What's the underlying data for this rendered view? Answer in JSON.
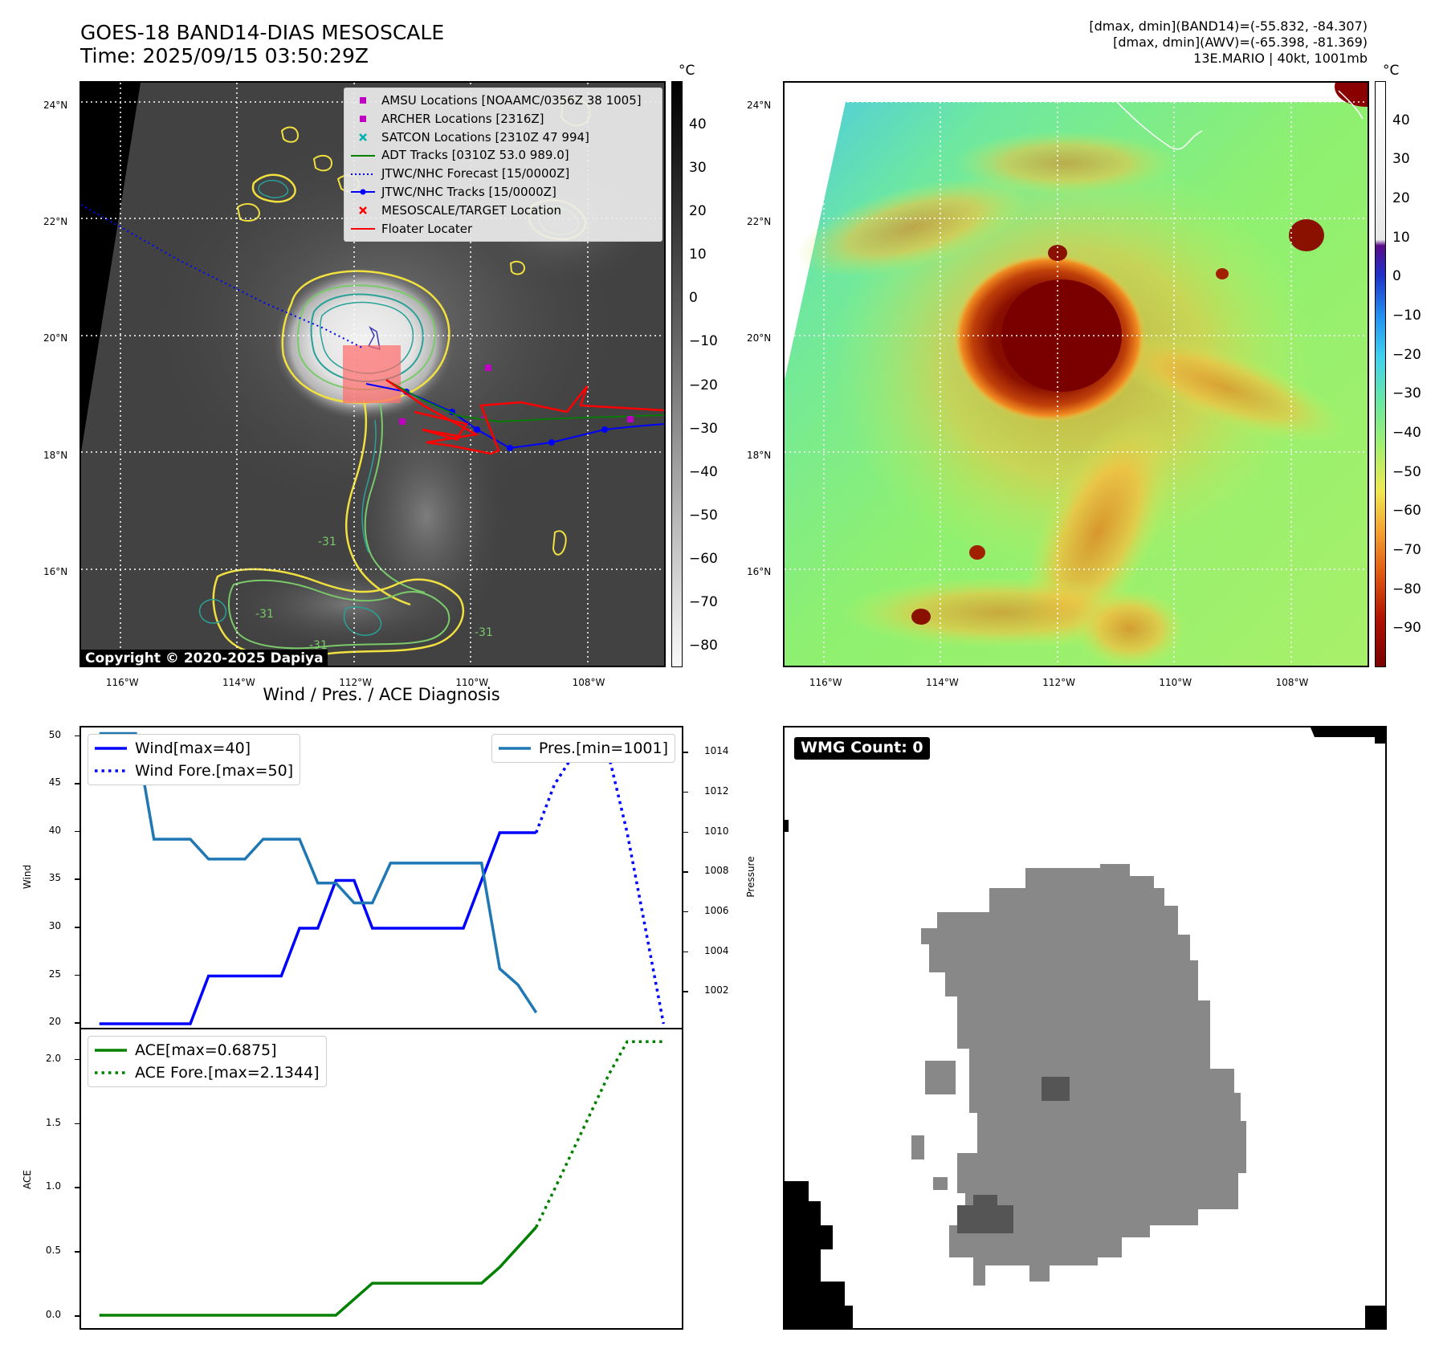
{
  "header": {
    "title_line1": "GOES-18 BAND14-DIAS MESOSCALE",
    "title_line2": "Time: 2025/09/15 03:50:29Z",
    "info_line1": "[dmax, dmin](BAND14)=(-55.832, -84.307)",
    "info_line2": "[dmax, dmin](AWV)=(-65.398, -81.369)",
    "info_line3": "13E.MARIO | 40kt, 1001mb"
  },
  "map_axes": {
    "lat_labels": [
      "24°N",
      "22°N",
      "20°N",
      "18°N",
      "16°N"
    ],
    "lat_values": [
      24,
      22,
      20,
      18,
      16
    ],
    "lon_labels": [
      "116°W",
      "114°W",
      "112°W",
      "110°W",
      "108°W"
    ],
    "lon_values": [
      -116,
      -114,
      -112,
      -110,
      -108
    ],
    "lon_range": [
      -116.7,
      -106.7
    ],
    "lat_range": [
      14.4,
      24.4
    ]
  },
  "ir_panel": {
    "colorbar_unit": "°C",
    "colorbar_ticks": [
      "40",
      "30",
      "20",
      "10",
      "0",
      "−10",
      "−20",
      "−30",
      "−40",
      "−50",
      "−60",
      "−70",
      "−80"
    ],
    "colorbar_values": [
      40,
      30,
      20,
      10,
      0,
      -10,
      -20,
      -30,
      -40,
      -50,
      -60,
      -70,
      -80
    ],
    "colorbar_range": [
      -85,
      50
    ],
    "copyright": "Copyright © 2020-2025 Dapiya",
    "legend": [
      {
        "label": "AMSU Locations [NOAAMC/0356Z 38 1005]",
        "symbol": "square",
        "color": "#c000c0"
      },
      {
        "label": "ARCHER Locations [2316Z]",
        "symbol": "square",
        "color": "#c000c0"
      },
      {
        "label": "SATCON Locations [2310Z 47 994]",
        "symbol": "x",
        "color": "#00b0b0"
      },
      {
        "label": "ADT Tracks [0310Z 53.0 989.0]",
        "symbol": "line",
        "color": "#008000"
      },
      {
        "label": "JTWC/NHC Forecast [15/0000Z]",
        "symbol": "dotted",
        "color": "#0000ff"
      },
      {
        "label": "JTWC/NHC Tracks [15/0000Z]",
        "symbol": "line-dot",
        "color": "#0000ff"
      },
      {
        "label": "MESOSCALE/TARGET Location",
        "symbol": "x",
        "color": "#ff0000"
      },
      {
        "label": "Floater Locater",
        "symbol": "line",
        "color": "#ff0000"
      }
    ],
    "contour_labels": [
      "-31",
      "-31",
      "-31",
      "-31"
    ]
  },
  "awv_panel": {
    "colorbar_unit": "°C",
    "colorbar_ticks": [
      "40",
      "30",
      "20",
      "10",
      "0",
      "−10",
      "−20",
      "−30",
      "−40",
      "−50",
      "−60",
      "−70",
      "−80",
      "−90"
    ],
    "colorbar_values": [
      40,
      30,
      20,
      10,
      0,
      -10,
      -20,
      -30,
      -40,
      -50,
      -60,
      -70,
      -80,
      -90
    ],
    "colorbar_range": [
      -100,
      50
    ]
  },
  "diagnosis_title": "Wind / Pres. / ACE Diagnosis",
  "chart_data": [
    {
      "type": "line",
      "title": "Wind / Pres. / ACE Diagnosis",
      "ylabel": "Wind",
      "ylabel_right": "Pressure",
      "ylim": [
        19.5,
        51
      ],
      "ylim_right": [
        1000.2,
        1015.3
      ],
      "yticks": [
        20,
        25,
        30,
        35,
        40,
        45,
        50
      ],
      "yticks_right": [
        1002,
        1004,
        1006,
        1008,
        1010,
        1012,
        1014
      ],
      "xlim": [
        -1,
        32
      ],
      "series": [
        {
          "name": "Wind[max=40]",
          "axis": "left",
          "style": "solid",
          "color": "#0000ff",
          "x": [
            0,
            5,
            6,
            10,
            11,
            12,
            13,
            14,
            15,
            16,
            17,
            18,
            19,
            20,
            21,
            22,
            23,
            24
          ],
          "values": [
            20,
            20,
            25,
            25,
            30,
            30,
            35,
            35,
            30,
            30,
            30,
            30,
            30,
            30,
            35,
            40,
            40,
            40
          ]
        },
        {
          "name": "Wind Fore.[max=50]",
          "axis": "left",
          "style": "dotted",
          "color": "#0000ff",
          "x": [
            24,
            25,
            26,
            27,
            28,
            29,
            30,
            31
          ],
          "values": [
            40,
            45,
            48,
            50,
            48,
            40,
            30,
            20
          ]
        },
        {
          "name": "Pres.[min=1001]",
          "axis": "right",
          "style": "solid",
          "color": "#1f77b4",
          "x": [
            0,
            2,
            3,
            5,
            6,
            8,
            9,
            11,
            12,
            13,
            14,
            15,
            16,
            17,
            18,
            19,
            20,
            21,
            22,
            23,
            24
          ],
          "values": [
            1015,
            1015,
            1009.7,
            1009.7,
            1008.7,
            1008.7,
            1009.7,
            1009.7,
            1007.5,
            1007.5,
            1006.5,
            1006.5,
            1008.5,
            1008.5,
            1008.5,
            1008.5,
            1008.5,
            1008.5,
            1003.2,
            1002.4,
            1001
          ]
        }
      ]
    },
    {
      "type": "line",
      "ylabel": "ACE",
      "ylim": [
        -0.1,
        2.23
      ],
      "yticks": [
        0.0,
        0.5,
        1.0,
        1.5,
        2.0
      ],
      "ytick_labels": [
        "0.0",
        "0.5",
        "1.0",
        "1.5",
        "2.0"
      ],
      "xlim": [
        -1,
        32
      ],
      "series": [
        {
          "name": "ACE[max=0.6875]",
          "style": "solid",
          "color": "#008000",
          "x": [
            0,
            13,
            15,
            21,
            22,
            24
          ],
          "values": [
            0,
            0,
            0.25,
            0.25,
            0.375,
            0.6875
          ]
        },
        {
          "name": "ACE Fore.[max=2.1344]",
          "style": "dotted",
          "color": "#008000",
          "x": [
            24,
            25,
            26,
            27,
            28,
            29,
            30,
            31
          ],
          "values": [
            0.6875,
            0.98,
            1.28,
            1.58,
            1.88,
            2.1344,
            2.1344,
            2.1344
          ]
        }
      ]
    }
  ],
  "wmg_panel": {
    "label": "WMG Count: 0"
  }
}
